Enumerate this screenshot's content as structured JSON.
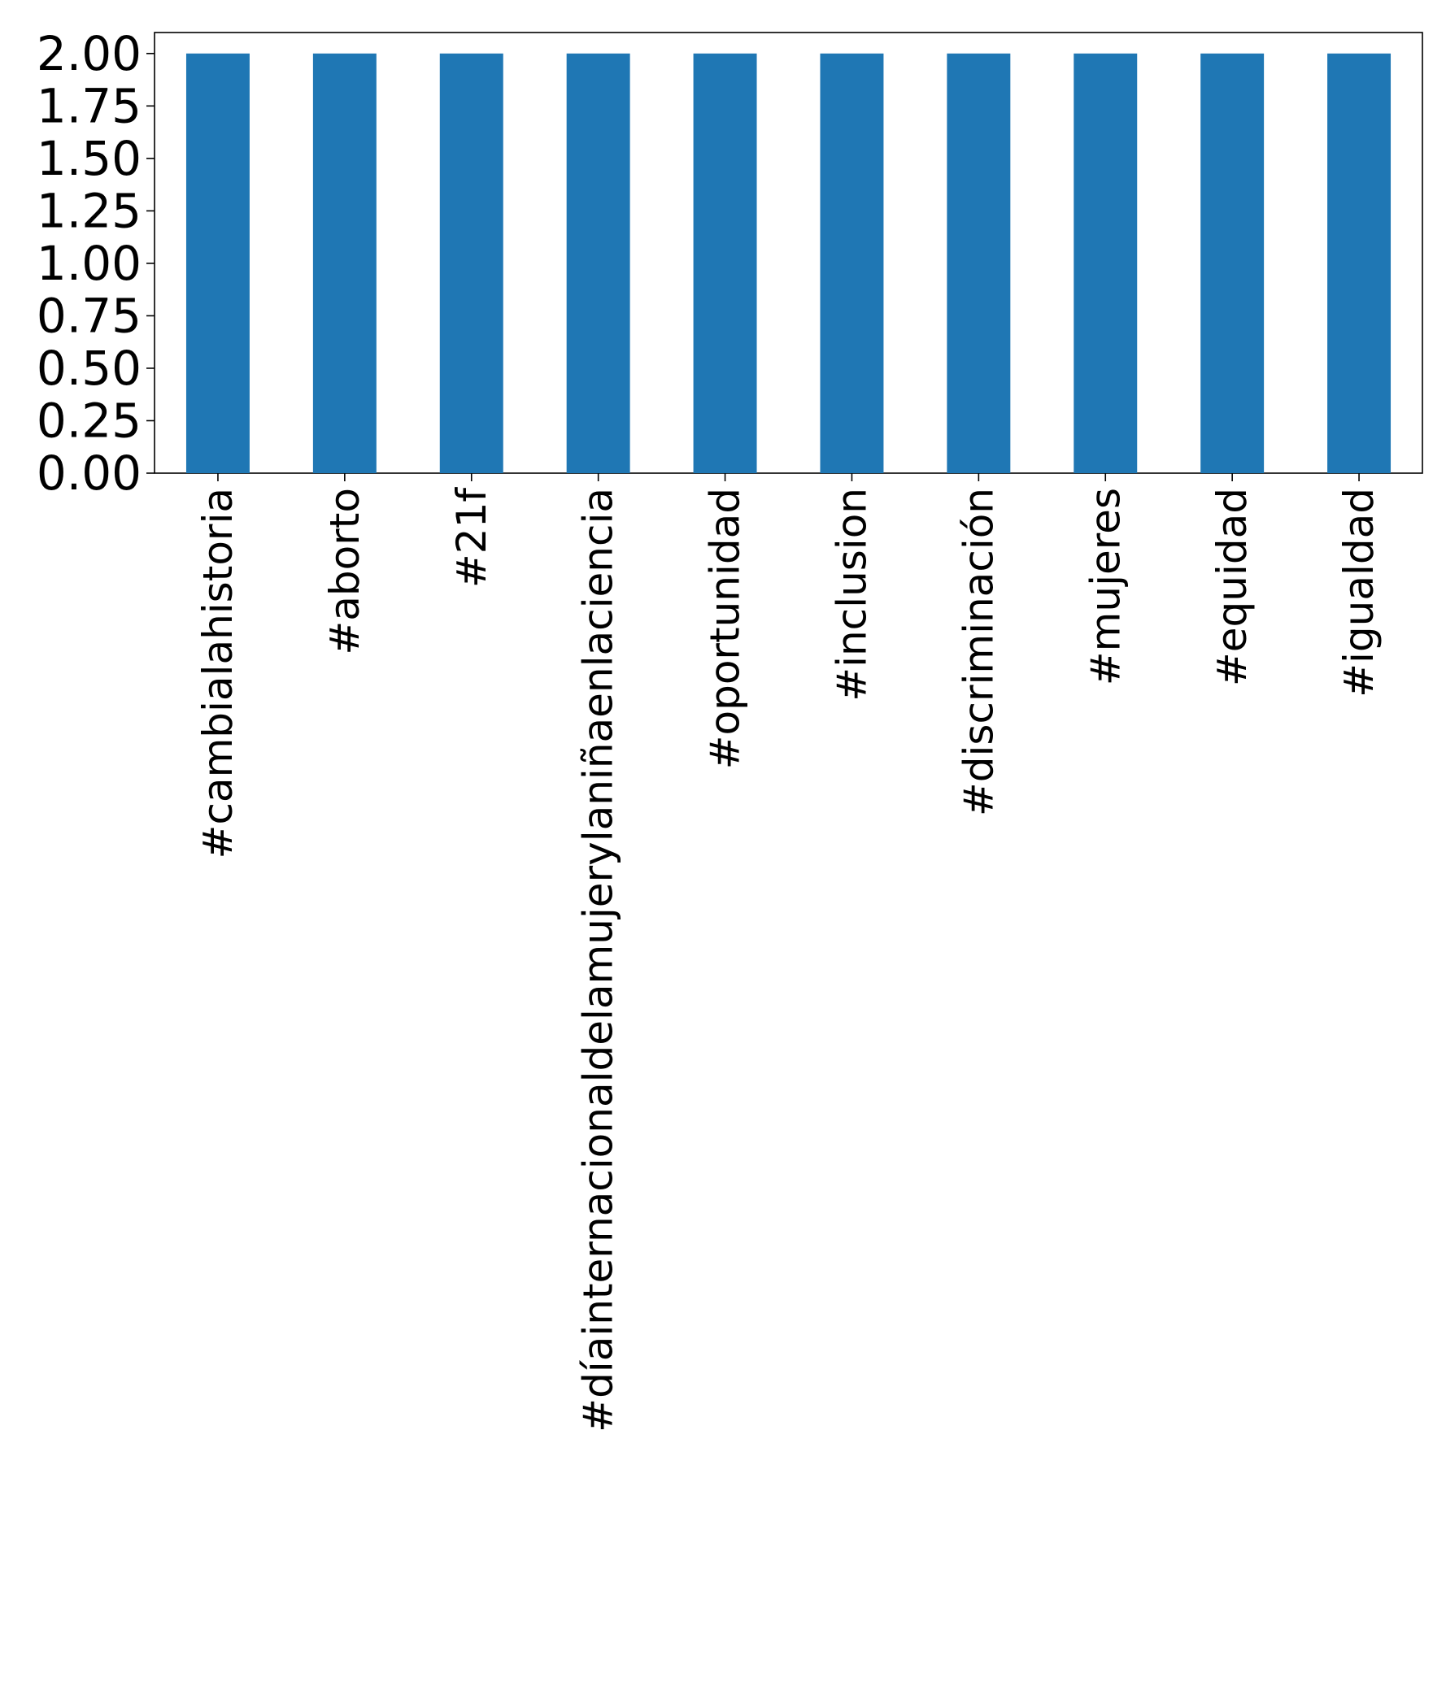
{
  "chart_data": {
    "type": "bar",
    "title": "",
    "xlabel": "",
    "ylabel": "",
    "categories": [
      "#cambialahistoria",
      "#aborto",
      "#21f",
      "#díainternacionaldelamujerylaniñaenlaciencia",
      "#oportunidad",
      "#inclusion",
      "#discriminación",
      "#mujeres",
      "#equidad",
      "#igualdad"
    ],
    "values": [
      2,
      2,
      2,
      2,
      2,
      2,
      2,
      2,
      2,
      2
    ],
    "ylim": [
      0,
      2.1
    ],
    "yticks": [
      "0.00",
      "0.25",
      "0.50",
      "0.75",
      "1.00",
      "1.25",
      "1.50",
      "1.75",
      "2.00"
    ],
    "bar_color": "#1f77b4",
    "x_label_rotation": "vertical",
    "grid": false,
    "legend": "none"
  }
}
